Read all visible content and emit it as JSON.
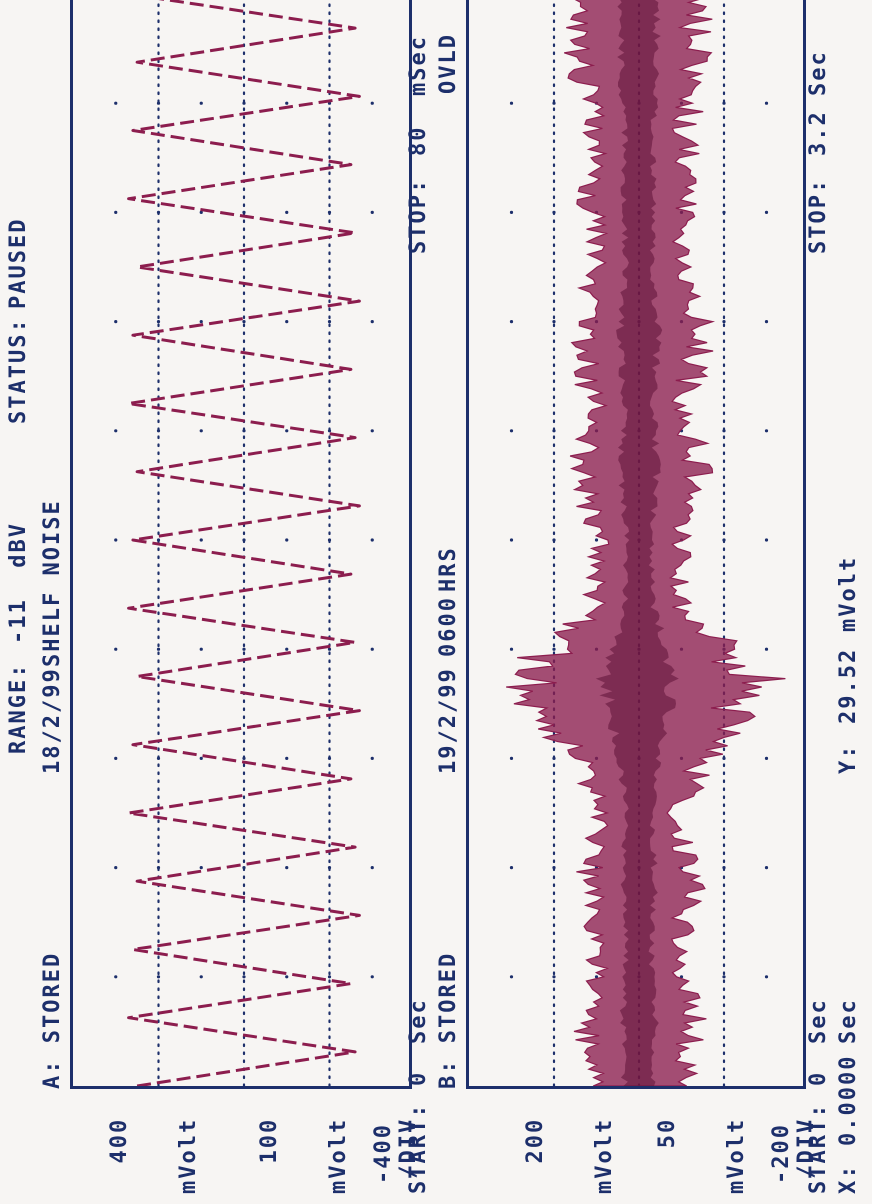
{
  "header": {
    "range_label": "RANGE:",
    "range_value": "-11  dBV",
    "status_label": "STATUS:",
    "status_value": "PAUSED"
  },
  "trace_a": {
    "title": "A: STORED",
    "date": "18/2/99",
    "note": "SHELF NOISE",
    "y_top": "400",
    "y_top_unit": "mVolt",
    "y_div": "100",
    "y_div_unit1": "mVolt",
    "y_div_unit2": "/DIV",
    "y_bottom": "-400",
    "start_label": "START:",
    "start_value": "0",
    "start_unit": "Sec",
    "stop_label": "STOP:",
    "stop_value": "80",
    "stop_unit": "mSec",
    "flag": "OVLD"
  },
  "trace_b": {
    "title": "B: STORED",
    "date": "19/2/99",
    "time": "0600",
    "time_unit": "HRS",
    "y_top": "200",
    "y_top_unit": "mVolt",
    "y_div": "50",
    "y_div_unit1": "mVolt",
    "y_div_unit2": "/DIV",
    "y_bottom": "-200",
    "start_label": "START:",
    "start_value": "0",
    "start_unit": "Sec",
    "stop_label": "STOP:",
    "stop_value": "3.2",
    "stop_unit": "Sec"
  },
  "cursor": {
    "x_label": "X:",
    "x_value": "0.0000",
    "x_unit": "Sec",
    "y_label": "Y:",
    "y_value": "29.52",
    "y_unit": "mVolt"
  },
  "colors": {
    "text": "#1d2f6b",
    "trace": "#8c1d4e",
    "grid_dots": "#1d2f6b",
    "background": "#f7f5f3"
  },
  "chart_data": [
    {
      "type": "line",
      "trace": "A",
      "x_unit": "mSec",
      "y_unit": "mVolt",
      "xlim": [
        0,
        80
      ],
      "ylim": [
        -400,
        400
      ],
      "x_divisions": 10,
      "y_divisions": 8,
      "grid": true,
      "x": [
        0,
        2.5,
        5,
        7.5,
        10,
        12.5,
        15,
        17.5,
        20,
        22.5,
        25,
        27.5,
        30,
        32.5,
        35,
        37.5,
        40,
        42.5,
        45,
        47.5,
        50,
        52.5,
        55,
        57.5,
        60,
        62.5,
        65,
        67.5,
        70,
        72.5,
        75,
        77.5,
        80
      ],
      "y": [
        250,
        -260,
        270,
        -250,
        260,
        -270,
        250,
        -260,
        270,
        -250,
        260,
        -270,
        250,
        -260,
        270,
        -250,
        260,
        -270,
        250,
        -260,
        270,
        -250,
        260,
        -270,
        250,
        -260,
        270,
        -250,
        260,
        -270,
        250,
        -260,
        270
      ]
    },
    {
      "type": "line",
      "trace": "B",
      "x_unit": "Sec",
      "y_unit": "mVolt",
      "xlim": [
        0,
        3.2
      ],
      "ylim": [
        -200,
        200
      ],
      "x_divisions": 10,
      "y_divisions": 8,
      "grid": true,
      "x": [
        0,
        0.2,
        0.4,
        0.6,
        0.8,
        1.0,
        1.2,
        1.4,
        1.6,
        1.8,
        2.0,
        2.2,
        2.4,
        2.6,
        2.8,
        3.0,
        3.2
      ],
      "y_envelope": [
        70,
        80,
        60,
        80,
        60,
        110,
        175,
        70,
        60,
        90,
        70,
        95,
        65,
        75,
        70,
        90,
        85
      ]
    }
  ]
}
